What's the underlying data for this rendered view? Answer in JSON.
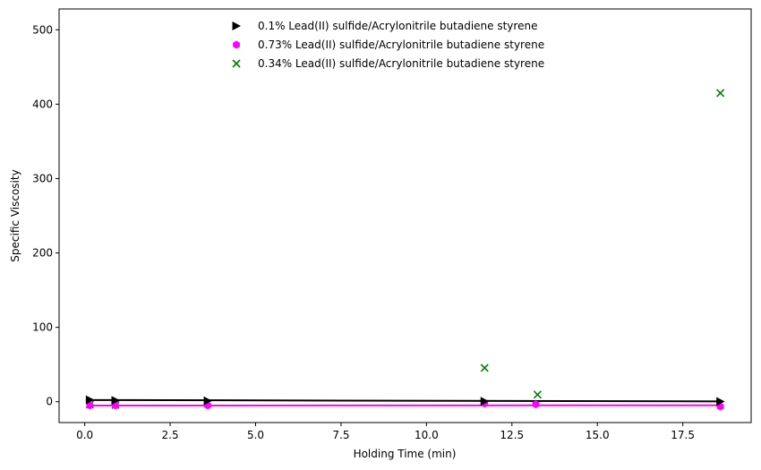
{
  "chart_data": {
    "type": "scatter",
    "title": "",
    "xlabel": "Holding Time (min)",
    "ylabel": "Specific Viscosity",
    "xlim": [
      -0.75,
      19.5
    ],
    "ylim": [
      -28,
      528
    ],
    "x_ticks": [
      0.0,
      2.5,
      5.0,
      7.5,
      10.0,
      12.5,
      15.0,
      17.5
    ],
    "x_tick_labels": [
      "0.0",
      "2.5",
      "5.0",
      "7.5",
      "10.0",
      "12.5",
      "15.0",
      "17.5"
    ],
    "y_ticks": [
      0,
      100,
      200,
      300,
      400,
      500
    ],
    "y_tick_labels": [
      "0",
      "100",
      "200",
      "300",
      "400",
      "500"
    ],
    "grid": false,
    "legend_position": "top-center",
    "series": [
      {
        "name": "0.1% Lead(II) sulfide/Acrylonitrile butadiene styrene",
        "marker": "triangle-right",
        "color": "#000000",
        "x": [
          0.15,
          0.9,
          3.6,
          11.7,
          18.6
        ],
        "y": [
          2.5,
          1.8,
          1.2,
          0.6,
          0.3
        ],
        "fit_line": {
          "x": [
            0.15,
            18.6
          ],
          "y": [
            2.3,
            0.4
          ]
        }
      },
      {
        "name": "0.73% Lead(II) sulfide/Acrylonitrile butadiene styrene",
        "marker": "hexagon",
        "color": "#ff00ff",
        "x": [
          0.15,
          0.9,
          3.6,
          11.7,
          13.2,
          18.6
        ],
        "y": [
          -5.0,
          -5.0,
          -5.0,
          -2.5,
          -3.5,
          -6.5
        ],
        "fit_line": {
          "x": [
            0.15,
            18.6
          ],
          "y": [
            -5.2,
            -4.8
          ]
        }
      },
      {
        "name": "0.34% Lead(II) sulfide/Acrylonitrile butadiene styrene",
        "marker": "x",
        "color": "#008000",
        "x": [
          0.15,
          0.9,
          11.7,
          13.25,
          18.6
        ],
        "y": [
          -4.0,
          -4.5,
          45.5,
          9.5,
          415.0
        ]
      }
    ]
  }
}
